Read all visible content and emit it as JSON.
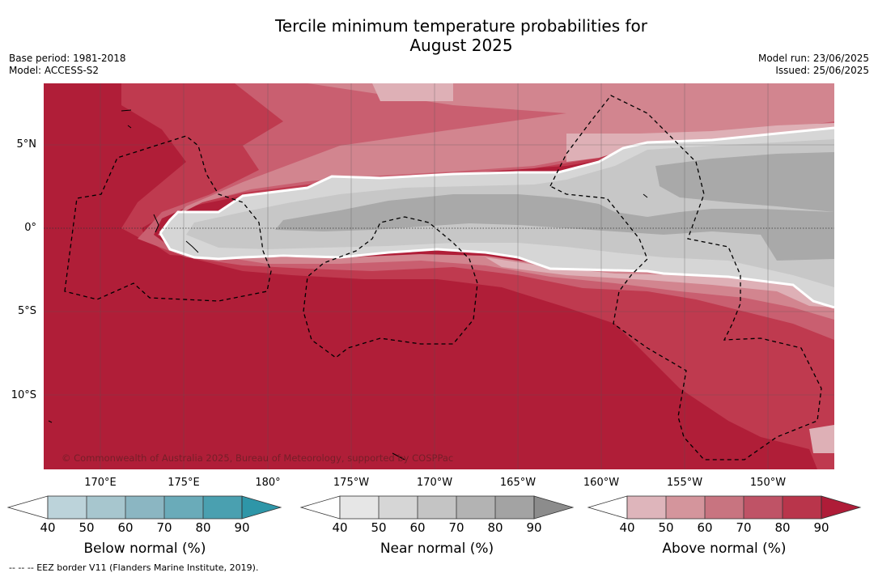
{
  "header": {
    "title_line1": "Tercile minimum temperature probabilities for",
    "title_line2": "August 2025",
    "base_period": "Base period: 1981-2018",
    "model": "Model: ACCESS-S2",
    "model_run": "Model run: 23/06/2025",
    "issued": "Issued: 25/06/2025"
  },
  "map": {
    "lat_labels": [
      "5°N",
      "0°",
      "5°S",
      "10°S"
    ],
    "lon_labels": [
      "170°E",
      "175°E",
      "180°",
      "175°W",
      "170°W",
      "165°W",
      "160°W",
      "155°W",
      "150°W"
    ],
    "copyright": "© Commonwealth of Australia 2025, Bureau of Meteorology, supported by COSPPac",
    "colors": {
      "above_90": "#b01e38",
      "above_80": "#bf3a4f",
      "above_70": "#c95f70",
      "above_60": "#d2858f",
      "above_50": "#deb0b6",
      "near_50": "#d6d6d6",
      "near_60": "#c7c7c7",
      "near_70": "#a9a9a9"
    }
  },
  "colorbars": [
    {
      "name": "Below normal (%)",
      "ticks": [
        "40",
        "50",
        "60",
        "70",
        "80",
        "90"
      ],
      "colors": [
        "#bcd3da",
        "#a7c6ce",
        "#8bb6c2",
        "#6aabb9",
        "#4aa0b0",
        "#2e96a8"
      ]
    },
    {
      "name": "Near normal (%)",
      "ticks": [
        "40",
        "50",
        "60",
        "70",
        "80",
        "90"
      ],
      "colors": [
        "#e6e6e6",
        "#d6d6d6",
        "#c4c4c4",
        "#b3b3b3",
        "#a3a3a3",
        "#8c8c8c"
      ]
    },
    {
      "name": "Above normal (%)",
      "ticks": [
        "40",
        "50",
        "60",
        "70",
        "80",
        "90"
      ],
      "colors": [
        "#deb5bb",
        "#d4959c",
        "#c87480",
        "#bf5366",
        "#b9354b",
        "#af1c38"
      ]
    }
  ],
  "footer": {
    "eez_note": "--  --  -- EEZ border V11 (Flanders Marine Institute, 2019)."
  }
}
